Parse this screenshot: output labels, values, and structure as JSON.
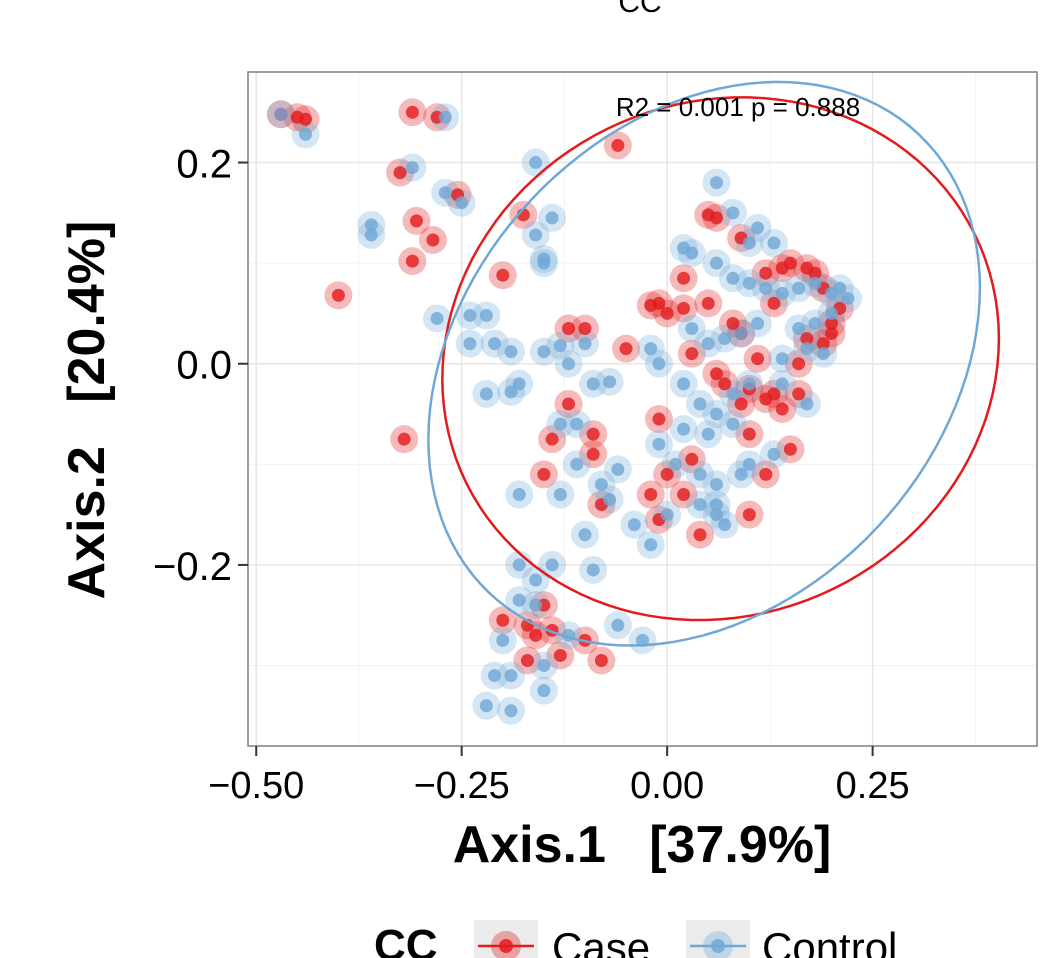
{
  "chart_data": {
    "type": "scatter",
    "title": "CC",
    "xlabel": "Axis.1   [37.9%]",
    "ylabel": "Axis.2   [20.4%]",
    "xlim": [
      -0.51,
      0.45
    ],
    "ylim": [
      -0.38,
      0.29
    ],
    "x_ticks": [
      -0.5,
      -0.25,
      0.0,
      0.25
    ],
    "x_tick_labels": [
      "−0.50",
      "−0.25",
      "0.00",
      "0.25"
    ],
    "y_ticks": [
      -0.2,
      0.0,
      0.2
    ],
    "y_tick_labels": [
      "−0.2",
      "0.0",
      "0.2"
    ],
    "annotation": "R2 = 0.001 p = 0.888",
    "grid": true,
    "legend": {
      "title": "CC",
      "position": "bottom",
      "entries": [
        {
          "label": "Case",
          "color": "#e41a1c"
        },
        {
          "label": "Control",
          "color": "#6fa8d6"
        }
      ]
    },
    "ellipses": [
      {
        "series": "Case",
        "cx": 0.065,
        "cy": 0.005,
        "rx": 0.34,
        "ry": 0.258,
        "angle_deg": 8
      },
      {
        "series": "Control",
        "cx": 0.045,
        "cy": 0.0,
        "rx": 0.355,
        "ry": 0.255,
        "angle_deg": 28
      }
    ],
    "series": [
      {
        "name": "Case",
        "color": "#e41a1c",
        "points": [
          [
            -0.47,
            0.248
          ],
          [
            -0.45,
            0.245
          ],
          [
            -0.44,
            0.243
          ],
          [
            -0.31,
            0.25
          ],
          [
            -0.28,
            0.245
          ],
          [
            -0.325,
            0.19
          ],
          [
            -0.305,
            0.142
          ],
          [
            -0.285,
            0.123
          ],
          [
            -0.31,
            0.102
          ],
          [
            -0.255,
            0.168
          ],
          [
            -0.4,
            0.068
          ],
          [
            -0.2,
            0.088
          ],
          [
            -0.175,
            0.148
          ],
          [
            -0.06,
            0.217
          ],
          [
            -0.32,
            -0.075
          ],
          [
            -0.02,
            0.058
          ],
          [
            -0.01,
            0.06
          ],
          [
            0.02,
            0.085
          ],
          [
            0.05,
            0.148
          ],
          [
            0.06,
            0.145
          ],
          [
            0.09,
            0.125
          ],
          [
            0.0,
            0.05
          ],
          [
            0.02,
            0.055
          ],
          [
            0.05,
            0.06
          ],
          [
            0.08,
            0.04
          ],
          [
            0.09,
            0.03
          ],
          [
            0.11,
            0.005
          ],
          [
            -0.05,
            0.015
          ],
          [
            -0.1,
            0.035
          ],
          [
            0.03,
            0.01
          ],
          [
            0.06,
            -0.01
          ],
          [
            0.07,
            -0.02
          ],
          [
            0.1,
            -0.025
          ],
          [
            0.12,
            -0.035
          ],
          [
            0.14,
            -0.045
          ],
          [
            0.16,
            -0.03
          ],
          [
            0.09,
            -0.04
          ],
          [
            0.1,
            -0.07
          ],
          [
            0.13,
            -0.03
          ],
          [
            -0.14,
            -0.075
          ],
          [
            -0.12,
            -0.04
          ],
          [
            -0.09,
            -0.07
          ],
          [
            -0.09,
            -0.09
          ],
          [
            -0.01,
            -0.055
          ],
          [
            0.03,
            -0.095
          ],
          [
            -0.15,
            -0.11
          ],
          [
            -0.08,
            -0.14
          ],
          [
            -0.02,
            -0.13
          ],
          [
            -0.01,
            -0.155
          ],
          [
            0.0,
            -0.11
          ],
          [
            0.02,
            -0.13
          ],
          [
            0.04,
            -0.17
          ],
          [
            0.1,
            -0.15
          ],
          [
            0.12,
            -0.11
          ],
          [
            0.15,
            -0.085
          ],
          [
            0.12,
            0.09
          ],
          [
            0.14,
            0.095
          ],
          [
            0.15,
            0.1
          ],
          [
            0.17,
            0.095
          ],
          [
            0.18,
            0.09
          ],
          [
            0.19,
            0.075
          ],
          [
            0.2,
            0.04
          ],
          [
            0.21,
            0.055
          ],
          [
            0.2,
            0.03
          ],
          [
            0.17,
            0.025
          ],
          [
            0.19,
            0.02
          ],
          [
            0.16,
            0.0
          ],
          [
            0.13,
            0.06
          ],
          [
            -0.12,
            0.035
          ],
          [
            -0.2,
            -0.255
          ],
          [
            -0.17,
            -0.26
          ],
          [
            -0.16,
            -0.27
          ],
          [
            -0.14,
            -0.265
          ],
          [
            -0.17,
            -0.295
          ],
          [
            -0.13,
            -0.29
          ],
          [
            -0.08,
            -0.295
          ],
          [
            -0.1,
            -0.275
          ],
          [
            -0.15,
            -0.24
          ]
        ]
      },
      {
        "name": "Control",
        "color": "#6fa8d6",
        "points": [
          [
            -0.47,
            0.248
          ],
          [
            -0.44,
            0.228
          ],
          [
            -0.27,
            0.245
          ],
          [
            -0.31,
            0.195
          ],
          [
            -0.27,
            0.17
          ],
          [
            -0.25,
            0.16
          ],
          [
            -0.36,
            0.128
          ],
          [
            -0.36,
            0.138
          ],
          [
            -0.16,
            0.128
          ],
          [
            -0.14,
            0.145
          ],
          [
            -0.15,
            0.1
          ],
          [
            -0.15,
            0.104
          ],
          [
            -0.16,
            0.2
          ],
          [
            -0.28,
            0.045
          ],
          [
            -0.24,
            0.048
          ],
          [
            -0.22,
            0.048
          ],
          [
            -0.24,
            0.02
          ],
          [
            -0.21,
            0.02
          ],
          [
            -0.19,
            0.012
          ],
          [
            -0.15,
            0.012
          ],
          [
            -0.13,
            0.018
          ],
          [
            -0.1,
            0.02
          ],
          [
            -0.12,
            0.0
          ],
          [
            -0.09,
            -0.02
          ],
          [
            -0.07,
            -0.018
          ],
          [
            -0.18,
            -0.02
          ],
          [
            -0.22,
            -0.03
          ],
          [
            -0.19,
            -0.028
          ],
          [
            -0.13,
            -0.06
          ],
          [
            -0.11,
            -0.06
          ],
          [
            -0.11,
            -0.1
          ],
          [
            -0.08,
            -0.12
          ],
          [
            -0.06,
            -0.105
          ],
          [
            -0.07,
            -0.135
          ],
          [
            -0.04,
            -0.16
          ],
          [
            -0.13,
            -0.13
          ],
          [
            -0.18,
            -0.13
          ],
          [
            -0.1,
            -0.17
          ],
          [
            -0.14,
            -0.2
          ],
          [
            -0.09,
            -0.205
          ],
          [
            -0.18,
            -0.2
          ],
          [
            -0.16,
            -0.215
          ],
          [
            0.06,
            0.18
          ],
          [
            0.08,
            0.15
          ],
          [
            0.11,
            0.135
          ],
          [
            0.1,
            0.12
          ],
          [
            0.13,
            0.12
          ],
          [
            0.02,
            0.115
          ],
          [
            0.03,
            0.11
          ],
          [
            0.06,
            0.1
          ],
          [
            0.08,
            0.085
          ],
          [
            0.1,
            0.08
          ],
          [
            0.12,
            0.075
          ],
          [
            0.14,
            0.07
          ],
          [
            0.16,
            0.075
          ],
          [
            0.18,
            0.08
          ],
          [
            0.2,
            0.07
          ],
          [
            0.21,
            0.075
          ],
          [
            0.22,
            0.065
          ],
          [
            0.2,
            0.05
          ],
          [
            0.18,
            0.04
          ],
          [
            0.16,
            0.035
          ],
          [
            0.17,
            0.015
          ],
          [
            0.19,
            0.01
          ],
          [
            0.14,
            0.005
          ],
          [
            0.11,
            0.04
          ],
          [
            0.09,
            0.03
          ],
          [
            0.07,
            0.025
          ],
          [
            0.05,
            0.02
          ],
          [
            0.03,
            0.035
          ],
          [
            -0.02,
            0.015
          ],
          [
            -0.01,
            0.0
          ],
          [
            0.02,
            -0.02
          ],
          [
            0.04,
            -0.04
          ],
          [
            0.06,
            -0.05
          ],
          [
            0.08,
            -0.06
          ],
          [
            0.05,
            -0.07
          ],
          [
            0.02,
            -0.065
          ],
          [
            -0.01,
            -0.08
          ],
          [
            0.01,
            -0.1
          ],
          [
            0.04,
            -0.11
          ],
          [
            0.06,
            -0.12
          ],
          [
            0.09,
            -0.11
          ],
          [
            0.1,
            -0.1
          ],
          [
            0.13,
            -0.09
          ],
          [
            0.06,
            -0.14
          ],
          [
            0.06,
            -0.15
          ],
          [
            0.07,
            -0.16
          ],
          [
            0.04,
            -0.14
          ],
          [
            0.0,
            -0.15
          ],
          [
            -0.02,
            -0.18
          ],
          [
            0.08,
            -0.03
          ],
          [
            0.1,
            -0.02
          ],
          [
            0.14,
            -0.02
          ],
          [
            0.17,
            -0.04
          ],
          [
            -0.06,
            -0.26
          ],
          [
            -0.03,
            -0.275
          ],
          [
            -0.12,
            -0.27
          ],
          [
            -0.15,
            -0.3
          ],
          [
            -0.19,
            -0.31
          ],
          [
            -0.21,
            -0.31
          ],
          [
            -0.15,
            -0.325
          ],
          [
            -0.22,
            -0.34
          ],
          [
            -0.19,
            -0.345
          ],
          [
            -0.18,
            -0.235
          ],
          [
            -0.16,
            -0.24
          ],
          [
            -0.2,
            -0.275
          ]
        ]
      }
    ]
  }
}
